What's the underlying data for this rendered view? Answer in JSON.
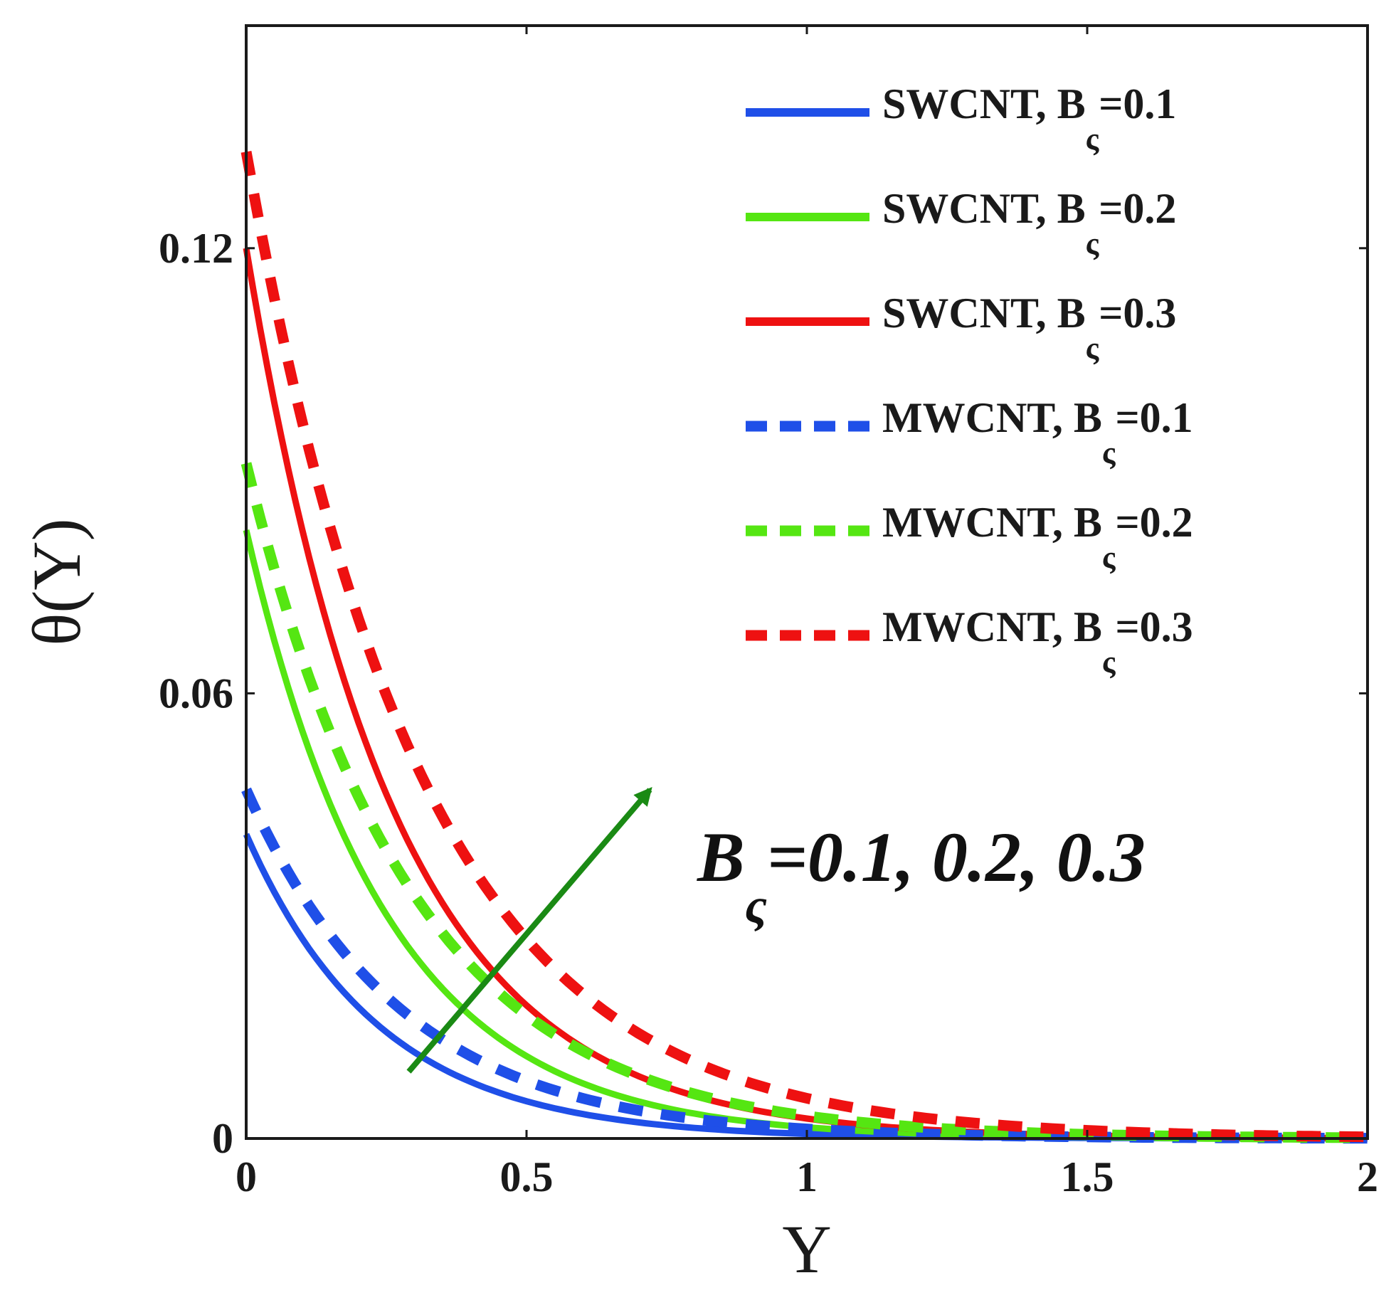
{
  "chart_data": {
    "type": "line",
    "xlabel": "Υ",
    "ylabel": "θ(Υ)",
    "xlim": [
      0,
      2
    ],
    "ylim": [
      0,
      0.15
    ],
    "xticks": [
      {
        "value": 0,
        "label": "0"
      },
      {
        "value": 0.5,
        "label": "0.5"
      },
      {
        "value": 1,
        "label": "1"
      },
      {
        "value": 1.5,
        "label": "1.5"
      },
      {
        "value": 2,
        "label": "2"
      }
    ],
    "yticks": [
      {
        "value": 0,
        "label": "0"
      },
      {
        "value": 0.06,
        "label": "0.06"
      },
      {
        "value": 0.12,
        "label": "0.12"
      }
    ],
    "legend_position": "top-right",
    "series": [
      {
        "name": "SWCNT, B_ς=0.1",
        "label_main": "SWCNT, B",
        "label_sub": "ς",
        "label_value": "=0.1",
        "color": "#1f4fe8",
        "style": "solid",
        "theta0": 0.041,
        "decay": 4.2
      },
      {
        "name": "SWCNT, B_ς=0.2",
        "label_main": "SWCNT, B",
        "label_sub": "ς",
        "label_value": "=0.2",
        "color": "#55e612",
        "style": "solid",
        "theta0": 0.082,
        "decay": 4.0
      },
      {
        "name": "SWCNT, B_ς=0.3",
        "label_main": "SWCNT, B",
        "label_sub": "ς",
        "label_value": "=0.3",
        "color": "#ee1111",
        "style": "solid",
        "theta0": 0.12,
        "decay": 3.8
      },
      {
        "name": "MWCNT, B_ς=0.1",
        "label_main": "MWCNT, B",
        "label_sub": "ς",
        "label_value": "=0.1",
        "color": "#1f4fe8",
        "style": "dashed",
        "theta0": 0.047,
        "decay": 3.6
      },
      {
        "name": "MWCNT, B_ς=0.2",
        "label_main": "MWCNT, B",
        "label_sub": "ς",
        "label_value": "=0.2",
        "color": "#55e612",
        "style": "dashed",
        "theta0": 0.091,
        "decay": 3.4
      },
      {
        "name": "MWCNT, B_ς=0.3",
        "label_main": "MWCNT, B",
        "label_sub": "ς",
        "label_value": "=0.3",
        "color": "#ee1111",
        "style": "dashed",
        "theta0": 0.133,
        "decay": 3.2
      }
    ],
    "annotation": {
      "text_main": "B",
      "text_sub": "ς",
      "text_values": "=0.1, 0.2, 0.3",
      "arrow_color": "#1a8a14",
      "arrow_from": [
        0.29,
        0.009
      ],
      "arrow_to": [
        0.72,
        0.047
      ]
    }
  }
}
